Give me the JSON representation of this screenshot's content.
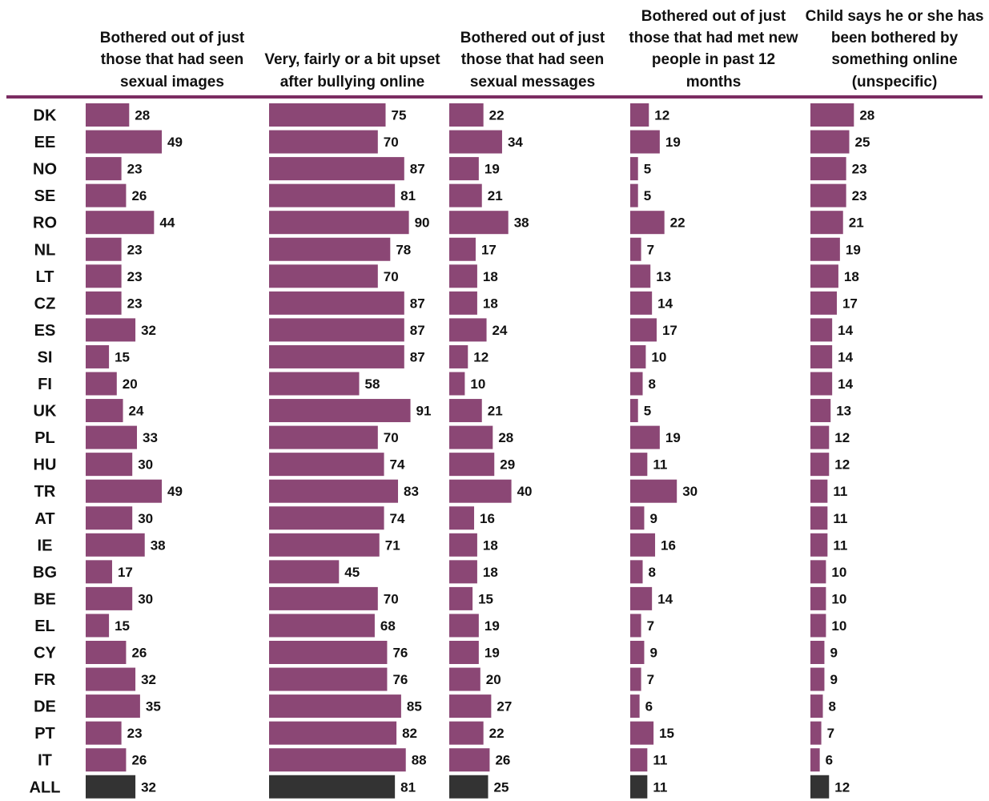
{
  "chart_data": {
    "type": "bar",
    "orientation": "horizontal",
    "categories": [
      "DK",
      "EE",
      "NO",
      "SE",
      "RO",
      "NL",
      "LT",
      "CZ",
      "ES",
      "SI",
      "FI",
      "UK",
      "PL",
      "HU",
      "TR",
      "AT",
      "IE",
      "BG",
      "BE",
      "EL",
      "CY",
      "FR",
      "DE",
      "PT",
      "IT",
      "ALL"
    ],
    "series": [
      {
        "name": "Bothered out of just those that had seen sexual images",
        "values": [
          28,
          49,
          23,
          26,
          44,
          23,
          23,
          23,
          32,
          15,
          20,
          24,
          33,
          30,
          49,
          30,
          38,
          17,
          30,
          15,
          26,
          32,
          35,
          23,
          26,
          32
        ]
      },
      {
        "name": "Very, fairly or a bit upset after bullying online",
        "values": [
          75,
          70,
          87,
          81,
          90,
          78,
          70,
          87,
          87,
          87,
          58,
          91,
          70,
          74,
          83,
          74,
          71,
          45,
          70,
          68,
          76,
          76,
          85,
          82,
          88,
          81
        ]
      },
      {
        "name": "Bothered out of just those that had seen sexual messages",
        "values": [
          22,
          34,
          19,
          21,
          38,
          17,
          18,
          18,
          24,
          12,
          10,
          21,
          28,
          29,
          40,
          16,
          18,
          18,
          15,
          19,
          19,
          20,
          27,
          22,
          26,
          25
        ]
      },
      {
        "name": "Bothered out of just those that had met new people in past 12 months",
        "values": [
          12,
          19,
          5,
          5,
          22,
          7,
          13,
          14,
          17,
          10,
          8,
          5,
          19,
          11,
          30,
          9,
          16,
          8,
          14,
          7,
          9,
          7,
          6,
          15,
          11,
          11
        ]
      },
      {
        "name": "Child says he or she has been bothered by something online (unspecific)",
        "values": [
          28,
          25,
          23,
          23,
          21,
          19,
          18,
          17,
          14,
          14,
          14,
          13,
          12,
          12,
          11,
          11,
          11,
          10,
          10,
          10,
          9,
          9,
          8,
          7,
          6,
          12
        ]
      }
    ],
    "legend": "column headers",
    "grid": false,
    "colors": {
      "bar": "#8b4775",
      "total_bar": "#333333",
      "header_rule": "#7b2d62",
      "text": "#111111"
    }
  }
}
